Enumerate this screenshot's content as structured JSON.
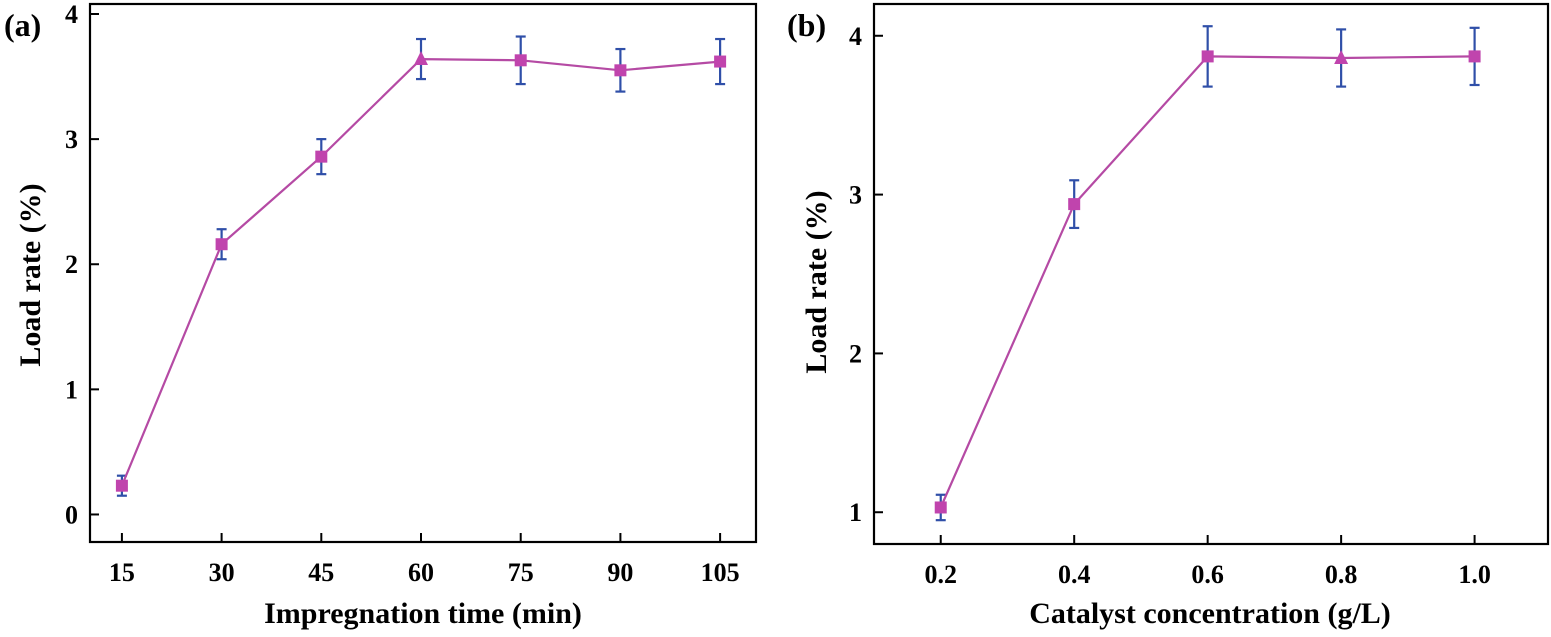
{
  "chart_data": [
    {
      "panel": "(a)",
      "type": "line",
      "xlabel": "Impregnation time (min)",
      "ylabel": "Load rate (%)",
      "x": [
        15,
        30,
        45,
        60,
        75,
        90,
        105
      ],
      "xticks": [
        "15",
        "30",
        "45",
        "60",
        "75",
        "90",
        "105"
      ],
      "xlim": [
        10.2,
        110.4
      ],
      "ylim": [
        -0.22,
        4.08
      ],
      "yticks": [
        0,
        1,
        2,
        3,
        4
      ],
      "series": [
        {
          "name": "Load rate",
          "values": [
            0.23,
            2.16,
            2.86,
            3.64,
            3.63,
            3.55,
            3.62
          ],
          "errors": [
            0.08,
            0.12,
            0.14,
            0.16,
            0.19,
            0.17,
            0.18
          ],
          "markers": [
            "square",
            "square",
            "square",
            "triangle",
            "square",
            "square",
            "square"
          ]
        }
      ]
    },
    {
      "panel": "(b)",
      "type": "line",
      "xlabel": "Catalyst concentration (g/L)",
      "ylabel": "Load rate (%)",
      "x": [
        0.2,
        0.4,
        0.6,
        0.8,
        1.0
      ],
      "xticks": [
        "0.2",
        "0.4",
        "0.6",
        "0.8",
        "1.0"
      ],
      "xlim": [
        0.1,
        1.11
      ],
      "ylim": [
        0.8,
        4.2
      ],
      "yticks": [
        1,
        2,
        3,
        4
      ],
      "series": [
        {
          "name": "Load rate",
          "values": [
            1.03,
            2.94,
            3.87,
            3.86,
            3.87
          ],
          "errors": [
            0.08,
            0.15,
            0.19,
            0.18,
            0.18
          ],
          "markers": [
            "square",
            "square",
            "square",
            "triangle",
            "square"
          ]
        }
      ]
    }
  ],
  "colors": {
    "line": "#b54aa4",
    "marker": "#c044ad",
    "error_bar": "#2f4fa8",
    "axis": "#000000"
  }
}
